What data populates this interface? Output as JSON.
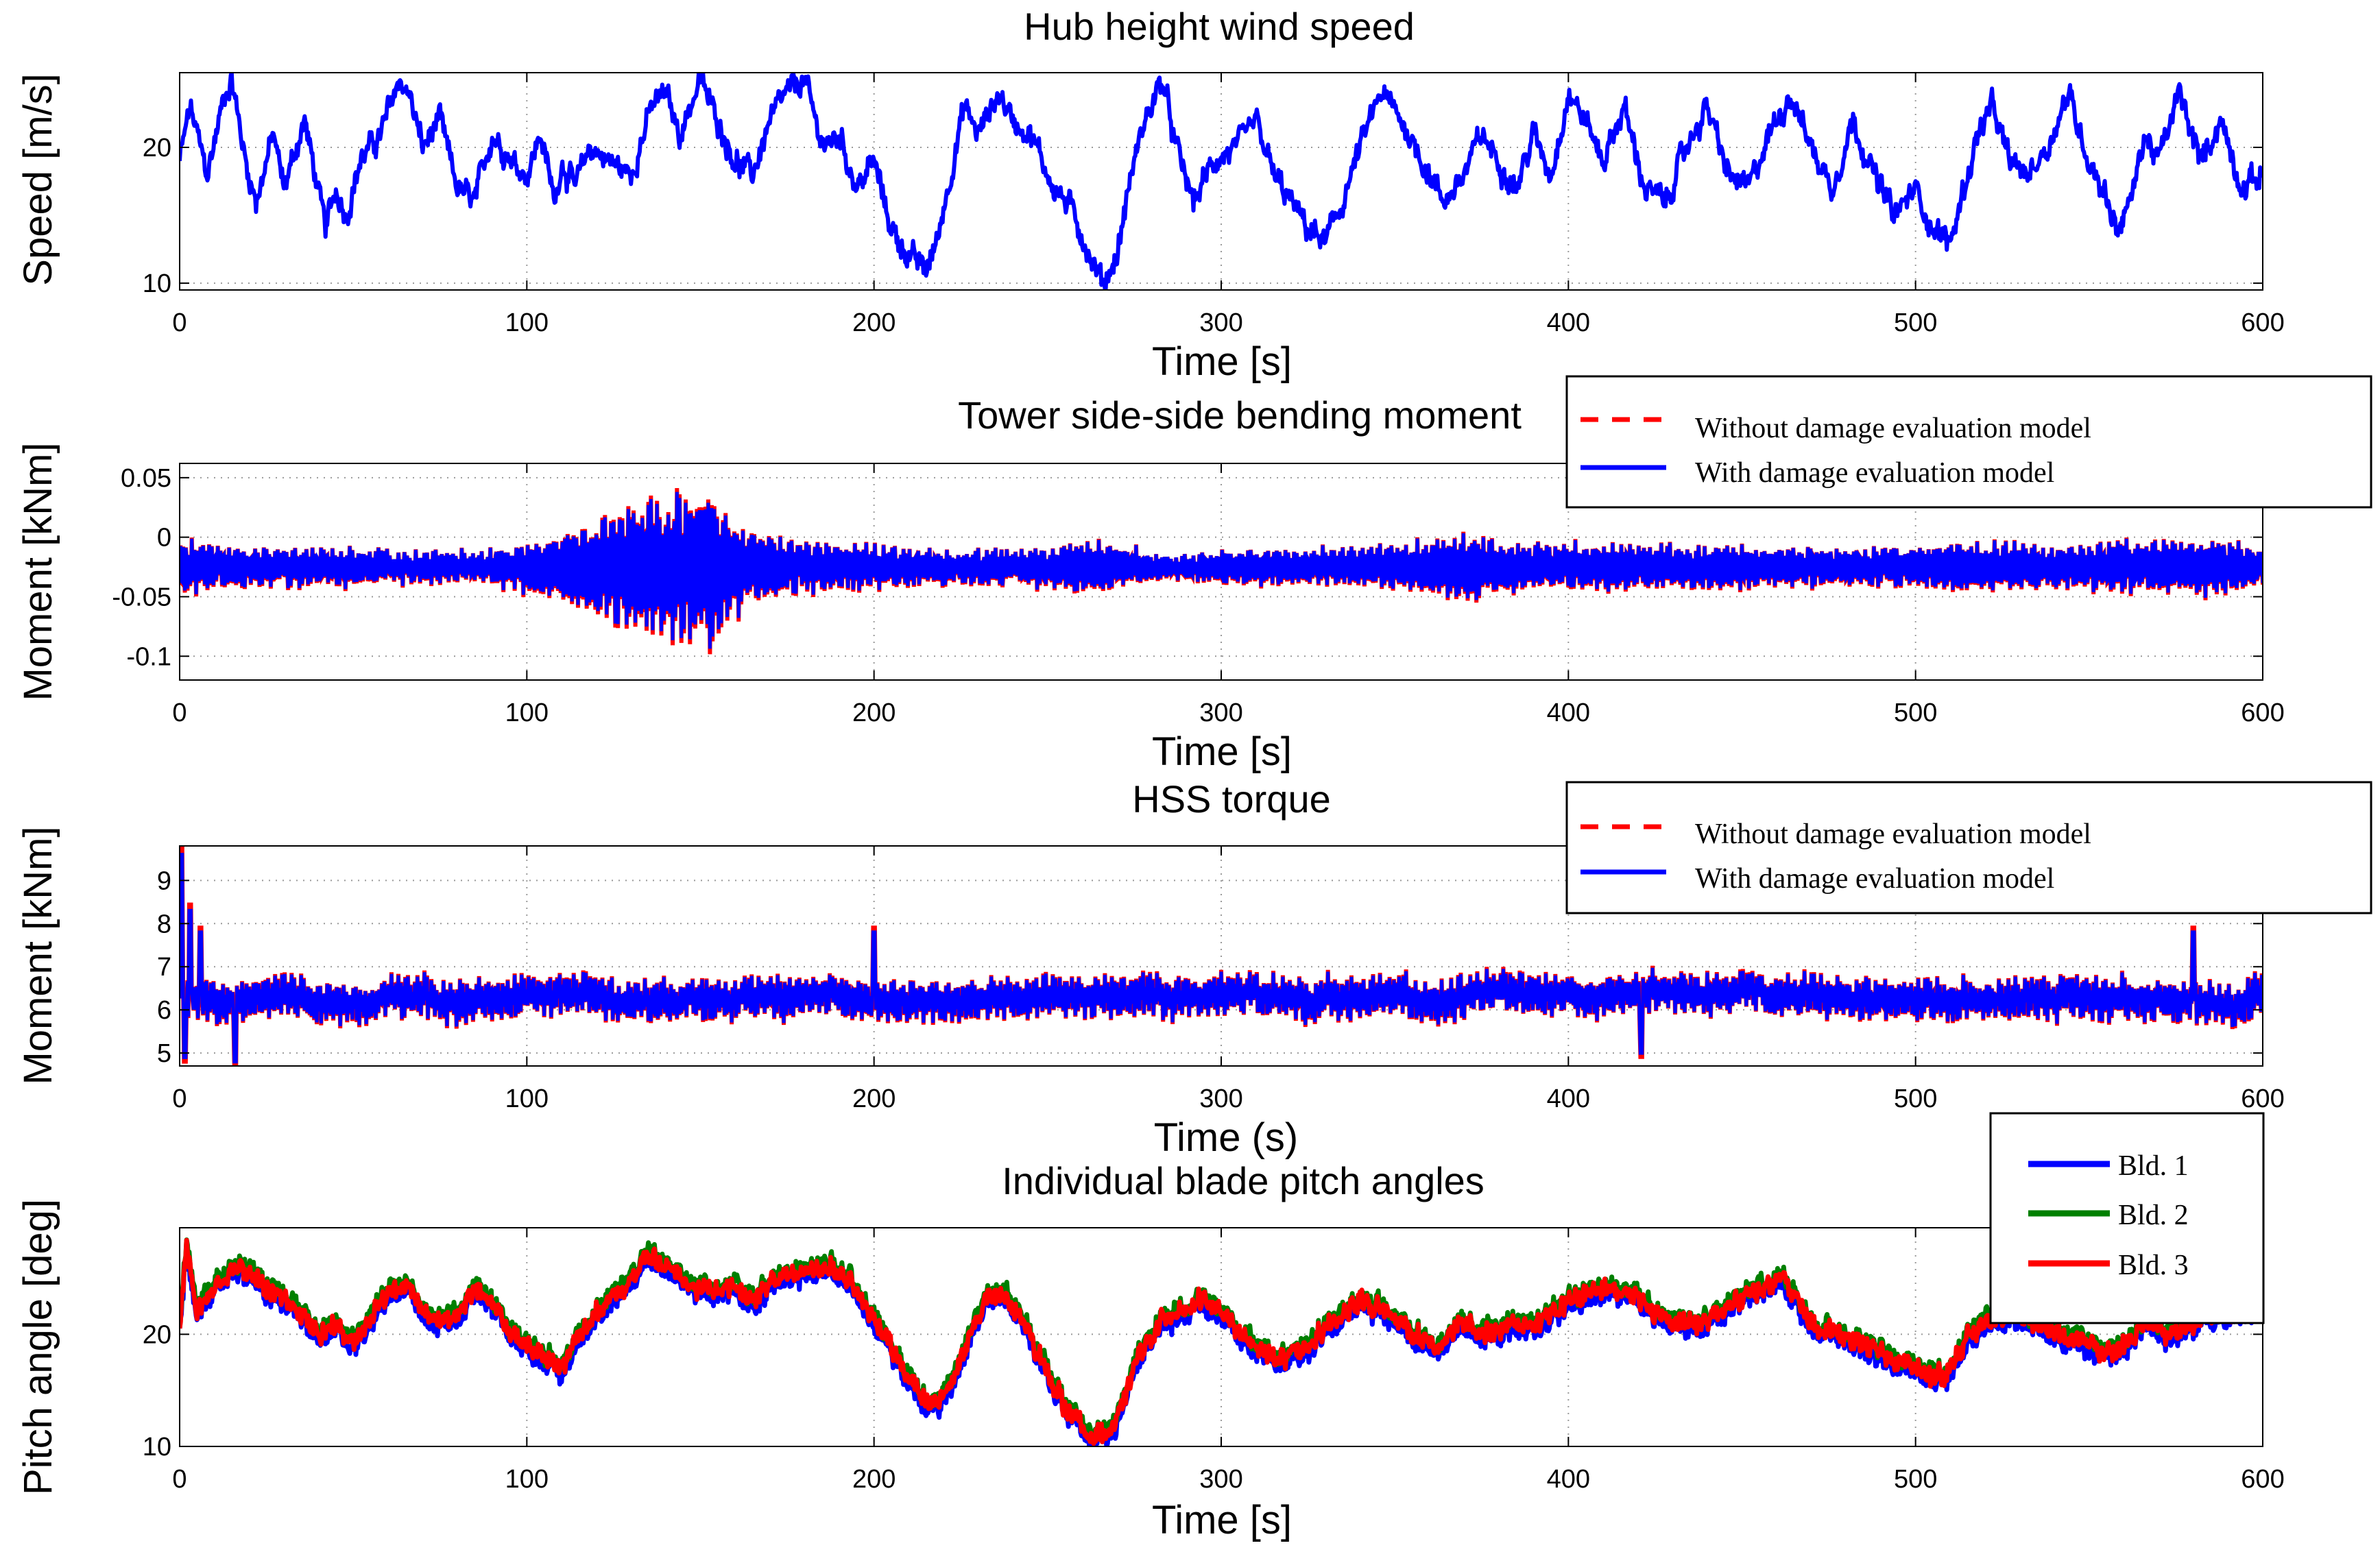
{
  "colors": {
    "blue": "#0000ff",
    "red": "#ff0000",
    "green": "#008000",
    "grid": "#9a9a9a",
    "axes": "#000000"
  },
  "chart_data": [
    {
      "type": "line",
      "title": "Hub height wind speed",
      "xlabel": "Time [s]",
      "ylabel": "Speed [m/s]",
      "xlim": [
        0,
        600
      ],
      "ylim": [
        9.5,
        25.5
      ],
      "xticks": [
        0,
        100,
        200,
        300,
        400,
        500,
        600
      ],
      "yticks": [
        10,
        20
      ],
      "ytick_labels": [
        "10",
        "20"
      ],
      "grid": true,
      "legend": null,
      "keypoints": {
        "t": [
          0,
          3,
          8,
          13,
          15,
          19,
          22,
          27,
          30,
          36,
          42,
          45,
          48,
          52,
          58,
          63,
          66,
          70,
          75,
          80,
          85,
          90,
          96,
          100,
          104,
          108,
          110,
          114,
          118,
          124,
          130,
          136,
          140,
          144,
          150,
          155,
          160,
          165,
          170,
          175,
          180,
          183,
          186,
          190,
          195,
          200,
          205,
          210,
          215,
          218,
          222,
          226,
          230,
          236,
          240,
          245,
          252,
          258,
          262,
          266,
          270,
          274,
          278,
          283,
          287,
          292,
          298,
          305,
          310,
          315,
          320,
          325,
          330,
          335,
          340,
          346,
          352,
          358,
          364,
          370,
          375,
          380,
          385,
          390,
          395,
          400,
          405,
          410,
          416,
          422,
          428,
          434,
          440,
          446,
          452,
          458,
          464,
          470,
          476,
          482,
          488,
          494,
          500,
          505,
          510,
          514,
          518,
          522,
          527,
          532,
          538,
          544,
          550,
          554,
          558,
          562,
          566,
          570,
          576,
          582,
          588,
          594,
          600
        ],
        "v": [
          19,
          23,
          18,
          24,
          25,
          19,
          16,
          21,
          17,
          22,
          14,
          17,
          15,
          19,
          21,
          25,
          24,
          20,
          22,
          17,
          16,
          21,
          19,
          18,
          21,
          16,
          19,
          17,
          20,
          19,
          18,
          23,
          24,
          21,
          25,
          22,
          19,
          18,
          22,
          24,
          25,
          22,
          20,
          21,
          17,
          19,
          14,
          12,
          11,
          13,
          18,
          23,
          21,
          24,
          22,
          21,
          17,
          15,
          12,
          10,
          12,
          18,
          22,
          25,
          20,
          16,
          19,
          20,
          22,
          18,
          16,
          14,
          13,
          16,
          20,
          24,
          22,
          19,
          16,
          18,
          21,
          19,
          17,
          21,
          18,
          24,
          22,
          19,
          23,
          17,
          16,
          20,
          23,
          18,
          17,
          21,
          24,
          20,
          17,
          22,
          18,
          15,
          17,
          14,
          13,
          17,
          21,
          23,
          19,
          18,
          20,
          24,
          19,
          17,
          14,
          16,
          21,
          19,
          24,
          19,
          22,
          17,
          18
        ],
        "noise": 0.9
      }
    },
    {
      "type": "line",
      "title": "Tower side-side bending moment",
      "xlabel": "Time [s]",
      "ylabel": "Moment [kNm]",
      "xlim": [
        0,
        600
      ],
      "ylim": [
        -0.12,
        0.062
      ],
      "xticks": [
        0,
        100,
        200,
        300,
        400,
        500,
        600
      ],
      "yticks": [
        -0.1,
        -0.05,
        0,
        0.05
      ],
      "ytick_labels": [
        "-0.1",
        "-0.05",
        "0",
        "0.05"
      ],
      "grid": true,
      "legend": "top-right",
      "series": [
        {
          "name": "Without damage evaluation model",
          "color": "#ff0000",
          "style": "dashed"
        },
        {
          "name": "With damage evaluation model",
          "color": "#0000ff",
          "style": "solid"
        }
      ],
      "envelope": {
        "t": [
          0,
          10,
          30,
          50,
          70,
          90,
          100,
          110,
          120,
          130,
          140,
          148,
          153,
          160,
          170,
          180,
          200,
          230,
          250,
          255,
          270,
          285,
          300,
          330,
          360,
          370,
          380,
          400,
          420,
          450,
          480,
          500,
          510,
          550,
          580,
          600
        ],
        "amp": [
          0.03,
          0.022,
          0.02,
          0.02,
          0.015,
          0.018,
          0.028,
          0.038,
          0.05,
          0.065,
          0.075,
          0.085,
          0.08,
          0.05,
          0.032,
          0.028,
          0.022,
          0.018,
          0.02,
          0.028,
          0.024,
          0.01,
          0.018,
          0.018,
          0.028,
          0.034,
          0.026,
          0.024,
          0.024,
          0.022,
          0.02,
          0.022,
          0.026,
          0.024,
          0.03,
          0.02
        ],
        "center": -0.025
      }
    },
    {
      "type": "line",
      "title": "HSS torque",
      "xlabel": "Time (s)",
      "ylabel": "Moment [kNm]",
      "xlim": [
        0,
        600
      ],
      "ylim": [
        4.7,
        9.8
      ],
      "xticks": [
        0,
        100,
        200,
        300,
        400,
        500,
        600
      ],
      "yticks": [
        5,
        6,
        7,
        8,
        9
      ],
      "ytick_labels": [
        "5",
        "6",
        "7",
        "8",
        "9"
      ],
      "grid": true,
      "legend": "top-right",
      "series": [
        {
          "name": "Without damage evaluation model",
          "color": "#ff0000",
          "style": "dashed"
        },
        {
          "name": "With damage evaluation model",
          "color": "#0000ff",
          "style": "solid"
        }
      ],
      "signal": {
        "mean": 6.3,
        "amp": 0.55,
        "spikes": [
          [
            0.5,
            9.6
          ],
          [
            1.5,
            4.9
          ],
          [
            3,
            8.3
          ],
          [
            6,
            7.8
          ],
          [
            16,
            4.8
          ],
          [
            200,
            7.8
          ],
          [
            421,
            5.0
          ],
          [
            580,
            7.8
          ]
        ]
      }
    },
    {
      "type": "line",
      "title": "Individual blade pitch angles",
      "xlabel": "Time [s]",
      "ylabel": "Pitch angle [deg]",
      "xlim": [
        0,
        600
      ],
      "ylim": [
        10,
        29.5
      ],
      "xticks": [
        0,
        100,
        200,
        300,
        400,
        500,
        600
      ],
      "yticks": [
        10,
        20
      ],
      "ytick_labels": [
        "10",
        "20"
      ],
      "grid": true,
      "legend": "top-right",
      "series": [
        {
          "name": "Bld. 1",
          "color": "#0000ff",
          "style": "solid"
        },
        {
          "name": "Bld. 2",
          "color": "#008000",
          "style": "solid"
        },
        {
          "name": "Bld. 3",
          "color": "#ff0000",
          "style": "solid"
        }
      ],
      "keypoints": {
        "t": [
          0,
          2,
          5,
          12,
          18,
          25,
          32,
          40,
          45,
          50,
          58,
          65,
          70,
          78,
          85,
          90,
          95,
          100,
          105,
          110,
          115,
          120,
          128,
          135,
          140,
          145,
          150,
          160,
          165,
          172,
          180,
          188,
          195,
          200,
          205,
          210,
          215,
          220,
          224,
          228,
          232,
          236,
          242,
          248,
          252,
          256,
          262,
          268,
          272,
          276,
          282,
          288,
          295,
          302,
          310,
          318,
          325,
          332,
          340,
          348,
          355,
          362,
          370,
          378,
          385,
          392,
          400,
          410,
          418,
          425,
          432,
          440,
          448,
          455,
          462,
          470,
          478,
          485,
          492,
          500,
          505,
          510,
          515,
          520,
          528,
          535,
          542,
          550,
          555,
          560,
          566,
          572,
          580,
          585
        ],
        "v": [
          21,
          28,
          22,
          25,
          26,
          24,
          23,
          20,
          21,
          19,
          23,
          25,
          22,
          21,
          24,
          23,
          20,
          19,
          18,
          17,
          20,
          22,
          24,
          27,
          26,
          25,
          24,
          24,
          23,
          25,
          26,
          26,
          24,
          21,
          19,
          16,
          14,
          14,
          17,
          20,
          23,
          24,
          22,
          18,
          15,
          13,
          11,
          11,
          14,
          18,
          21,
          22,
          23,
          21,
          19,
          18,
          19,
          21,
          23,
          22,
          20,
          19,
          21,
          20,
          21,
          21,
          23,
          24,
          24,
          22,
          21,
          21,
          23,
          24,
          25,
          21,
          20,
          19,
          18,
          17,
          16,
          17,
          20,
          21,
          22,
          21,
          20,
          19,
          18,
          19,
          21,
          20,
          21,
          22
        ],
        "noise": 1.1
      }
    }
  ]
}
